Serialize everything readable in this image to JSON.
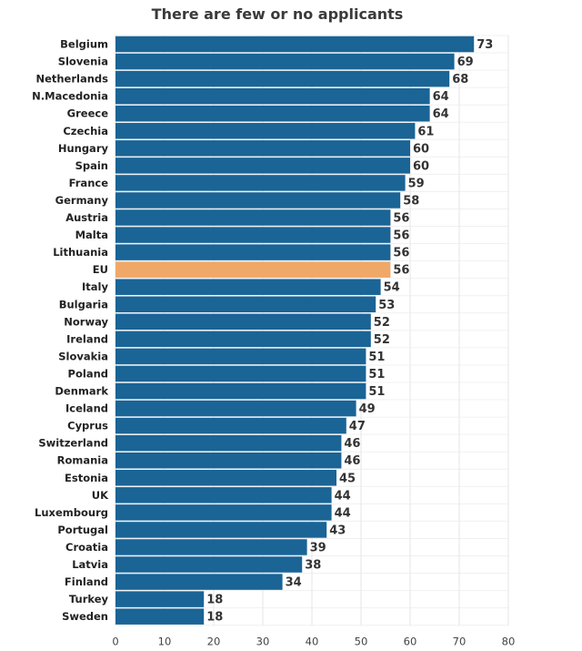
{
  "chart_data": {
    "type": "bar",
    "orientation": "horizontal",
    "title": "There are few or no applicants",
    "categories": [
      "Belgium",
      "Slovenia",
      "Netherlands",
      "N.Macedonia",
      "Greece",
      "Czechia",
      "Hungary",
      "Spain",
      "France",
      "Germany",
      "Austria",
      "Malta",
      "Lithuania",
      "EU",
      "Italy",
      "Bulgaria",
      "Norway",
      "Ireland",
      "Slovakia",
      "Poland",
      "Denmark",
      "Iceland",
      "Cyprus",
      "Switzerland",
      "Romania",
      "Estonia",
      "UK",
      "Luxembourg",
      "Portugal",
      "Croatia",
      "Latvia",
      "Finland",
      "Turkey",
      "Sweden"
    ],
    "values": [
      73,
      69,
      68,
      64,
      64,
      61,
      60,
      60,
      59,
      58,
      56,
      56,
      56,
      56,
      54,
      53,
      52,
      52,
      51,
      51,
      51,
      49,
      47,
      46,
      46,
      45,
      44,
      44,
      43,
      39,
      38,
      34,
      18,
      18
    ],
    "highlight_category": "EU",
    "xlim": [
      0,
      80
    ],
    "xticks": [
      0,
      10,
      20,
      30,
      40,
      50,
      60,
      70,
      80
    ],
    "xlabel": "",
    "ylabel": "",
    "grid": "vertical gridlines",
    "colors": {
      "bar": "#1a6496",
      "highlight": "#f0a868",
      "grid": "#e6e6e6"
    }
  }
}
